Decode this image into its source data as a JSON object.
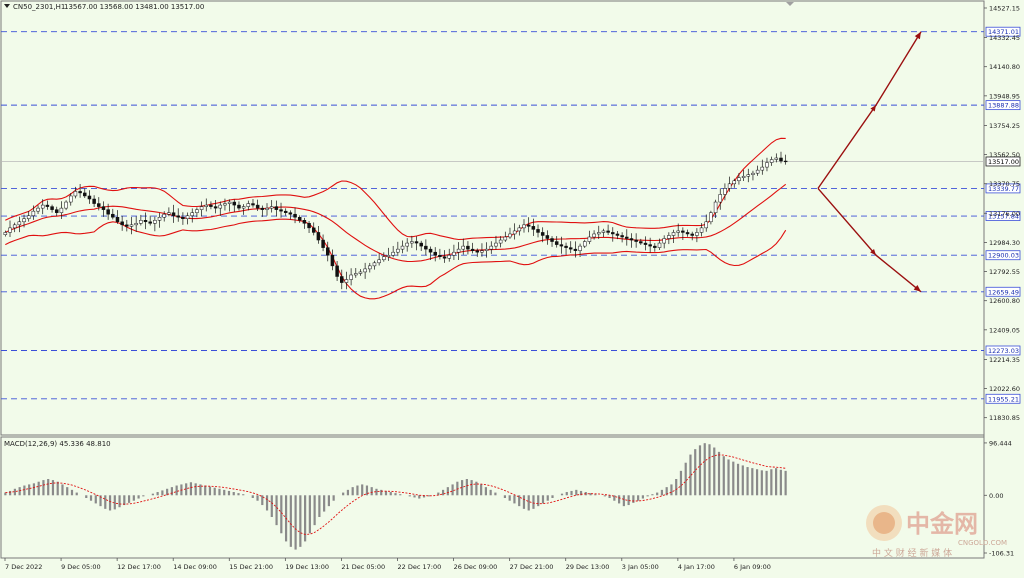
{
  "chart_data": [
    {
      "type": "candlestick",
      "title": "CN50_2301,H1",
      "ohlc_header": [
        "13567.00",
        "13568.00",
        "13481.00",
        "13517.00"
      ],
      "current_price": 13517,
      "current_price_label": "13517.00",
      "ylim": [
        11730,
        14560
      ],
      "y_ticks": [
        {
          "value": 14527.15,
          "label": "14527.15"
        },
        {
          "value": 14332.45,
          "label": "14332.45"
        },
        {
          "value": 14140.8,
          "label": "14140.80"
        },
        {
          "value": 13948.95,
          "label": "13948.95"
        },
        {
          "value": 13754.25,
          "label": "13754.25"
        },
        {
          "value": 13562.5,
          "label": "13562.50"
        },
        {
          "value": 13370.75,
          "label": "13370.75"
        },
        {
          "value": 13176.0,
          "label": "13176.00"
        },
        {
          "value": 12984.3,
          "label": "12984.30"
        },
        {
          "value": 12792.55,
          "label": "12792.55"
        },
        {
          "value": 12600.8,
          "label": "12600.80"
        },
        {
          "value": 12409.05,
          "label": "12409.05"
        },
        {
          "value": 12214.35,
          "label": "12214.35"
        },
        {
          "value": 12022.6,
          "label": "12022.60"
        },
        {
          "value": 11830.85,
          "label": "11830.85"
        }
      ],
      "levels": [
        {
          "value": 14371.01,
          "label": "14371.01"
        },
        {
          "value": 13887.88,
          "label": "13887.88"
        },
        {
          "value": 13339.77,
          "label": "13339.77"
        },
        {
          "value": 13157.84,
          "label": "13157.84"
        },
        {
          "value": 12900.03,
          "label": "12900.03"
        },
        {
          "value": 12659.49,
          "label": "12659.49"
        },
        {
          "value": 12273.03,
          "label": "12273.03"
        },
        {
          "value": 11955.21,
          "label": "11955.21"
        }
      ],
      "x_labels": [
        "7 Dec 2022",
        "9 Dec 05:00",
        "12 Dec 17:00",
        "14 Dec 09:00",
        "15 Dec 21:00",
        "19 Dec 13:00",
        "21 Dec 05:00",
        "22 Dec 17:00",
        "26 Dec 09:00",
        "27 Dec 21:00",
        "29 Dec 13:00",
        "3 Jan 05:00",
        "4 Jan 17:00",
        "6 Jan 09:00"
      ],
      "closes": [
        13050,
        13080,
        13100,
        13120,
        13140,
        13160,
        13190,
        13210,
        13230,
        13220,
        13200,
        13180,
        13210,
        13250,
        13290,
        13320,
        13310,
        13290,
        13270,
        13240,
        13220,
        13200,
        13170,
        13150,
        13120,
        13100,
        13090,
        13100,
        13110,
        13130,
        13120,
        13110,
        13130,
        13150,
        13170,
        13180,
        13160,
        13150,
        13140,
        13160,
        13180,
        13200,
        13220,
        13230,
        13220,
        13210,
        13230,
        13240,
        13250,
        13230,
        13210,
        13220,
        13240,
        13230,
        13210,
        13200,
        13210,
        13220,
        13200,
        13190,
        13180,
        13170,
        13150,
        13130,
        13110,
        13080,
        13050,
        13000,
        12950,
        12900,
        12830,
        12760,
        12720,
        12740,
        12770,
        12780,
        12790,
        12810,
        12830,
        12850,
        12870,
        12890,
        12900,
        12920,
        12940,
        12960,
        12980,
        12990,
        12980,
        12960,
        12940,
        12920,
        12900,
        12890,
        12880,
        12900,
        12920,
        12940,
        12960,
        12940,
        12930,
        12920,
        12930,
        12940,
        12960,
        12980,
        13000,
        13020,
        13040,
        13060,
        13080,
        13100,
        13090,
        13070,
        13050,
        13030,
        13010,
        12990,
        12970,
        12960,
        12950,
        12940,
        12930,
        12960,
        12990,
        13020,
        13040,
        13050,
        13060,
        13050,
        13040,
        13030,
        13020,
        13010,
        13000,
        12990,
        12980,
        12970,
        12960,
        12950,
        12980,
        13010,
        13030,
        13050,
        13060,
        13050,
        13040,
        13030,
        13050,
        13080,
        13120,
        13180,
        13250,
        13300,
        13340,
        13370,
        13390,
        13410,
        13420,
        13430,
        13440,
        13460,
        13480,
        13510,
        13530,
        13540,
        13520,
        13517
      ],
      "macd": {
        "label": "MACD(12,26,9) 45.336 48.810",
        "ylim": [
          -110,
          100
        ],
        "ticks": [
          {
            "value": 96.444,
            "label": "96.444"
          },
          {
            "value": 0,
            "label": "0.00"
          },
          {
            "value": -106.31,
            "label": "-106.31"
          }
        ],
        "histogram": [
          5,
          8,
          12,
          15,
          18,
          20,
          22,
          25,
          28,
          30,
          28,
          25,
          20,
          15,
          10,
          5,
          0,
          -5,
          -10,
          -15,
          -20,
          -25,
          -28,
          -26,
          -22,
          -18,
          -14,
          -10,
          -6,
          -2,
          0,
          3,
          6,
          9,
          12,
          15,
          18,
          20,
          22,
          24,
          22,
          20,
          18,
          16,
          14,
          12,
          10,
          8,
          6,
          4,
          2,
          0,
          -5,
          -10,
          -18,
          -28,
          -40,
          -55,
          -70,
          -85,
          -95,
          -100,
          -95,
          -85,
          -70,
          -55,
          -40,
          -30,
          -20,
          -10,
          0,
          5,
          10,
          15,
          18,
          20,
          18,
          15,
          12,
          10,
          8,
          6,
          4,
          2,
          0,
          -2,
          -4,
          -6,
          -4,
          -2,
          0,
          5,
          10,
          15,
          20,
          25,
          28,
          30,
          28,
          25,
          20,
          15,
          10,
          5,
          0,
          -5,
          -10,
          -15,
          -20,
          -25,
          -28,
          -25,
          -20,
          -15,
          -10,
          -5,
          0,
          3,
          6,
          8,
          10,
          8,
          6,
          4,
          2,
          0,
          -2,
          -5,
          -10,
          -15,
          -20,
          -18,
          -14,
          -10,
          -6,
          -2,
          2,
          5,
          10,
          15,
          20,
          30,
          45,
          60,
          75,
          85,
          92,
          96,
          94,
          88,
          80,
          72,
          66,
          62,
          58,
          55,
          52,
          50,
          48,
          46,
          45,
          48,
          50,
          47,
          45
        ]
      }
    }
  ],
  "watermark": {
    "brand": "中金网",
    "domain": "CNGOLD.COM",
    "slogan": "中 文 财 经 新 媒 体"
  }
}
